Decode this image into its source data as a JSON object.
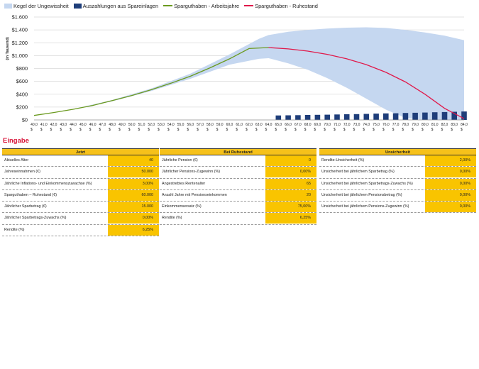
{
  "legend": [
    {
      "label": "Kegel der Ungewissheit",
      "kind": "box",
      "color": "#c5d7f0"
    },
    {
      "label": "Auszahlungen aus Spareinlagen",
      "kind": "box",
      "color": "#1f3e7a"
    },
    {
      "label": "Sparguthaben - Arbeitsjahre",
      "kind": "line",
      "color": "#6b9a1f"
    },
    {
      "label": "Sparguthaben - Ruhestand",
      "kind": "line",
      "color": "#e0194a"
    }
  ],
  "chart_data": {
    "type": "line",
    "ylabel": "(in Tausend)",
    "ylim": [
      0,
      1600
    ],
    "yticks": [
      0,
      200,
      400,
      600,
      800,
      1000,
      1200,
      1400,
      1600
    ],
    "ytick_labels": [
      "$0",
      "$200",
      "$400",
      "$600",
      "$800",
      "$1.000",
      "$1.200",
      "$1.400",
      "$1.600"
    ],
    "x": [
      40,
      41,
      42,
      43,
      44,
      45,
      46,
      47,
      48,
      49,
      50,
      51,
      52,
      53,
      54,
      55,
      56,
      57,
      58,
      59,
      60,
      61,
      62,
      63,
      64,
      65,
      66,
      67,
      68,
      69,
      70,
      71,
      72,
      73,
      74,
      75,
      76,
      77,
      78,
      79,
      80,
      81,
      82,
      83,
      84
    ],
    "xtick_labels": [
      "40,0 $",
      "41,0 $",
      "42,0 $",
      "43,0 $",
      "44,0 $",
      "45,0 $",
      "46,0 $",
      "47,0 $",
      "48,0 $",
      "49,0 $",
      "50,0 $",
      "51,0 $",
      "52,0 $",
      "53,0 $",
      "54,0 $",
      "55,0 $",
      "56,0 $",
      "57,0 $",
      "58,0 $",
      "59,0 $",
      "60,0 $",
      "61,0 $",
      "62,0 $",
      "63,0 $",
      "64,0 $",
      "65,0 $",
      "66,0 $",
      "67,0 $",
      "68,0 $",
      "69,0 $",
      "70,0 $",
      "71,0 $",
      "72,0 $",
      "73,0 $",
      "74,0 $",
      "75,0 $",
      "76,0 $",
      "77,0 $",
      "78,0 $",
      "79,0 $",
      "80,0 $",
      "81,0 $",
      "82,0 $",
      "83,0 $",
      "84,0 $"
    ],
    "grid": true,
    "legend_position": "top",
    "series": [
      {
        "name": "Sparguthaben - Arbeitsjahre",
        "type": "line",
        "color": "#6b9a1f",
        "x": [
          40,
          42,
          44,
          46,
          48,
          50,
          52,
          54,
          56,
          58,
          60,
          62,
          64
        ],
        "values": [
          70,
          115,
          165,
          225,
          300,
          380,
          470,
          570,
          680,
          810,
          950,
          1110,
          1125
        ]
      },
      {
        "name": "Sparguthaben - Ruhestand",
        "type": "line",
        "color": "#e0194a",
        "x": [
          64,
          66,
          68,
          70,
          72,
          74,
          76,
          78,
          80,
          82,
          84
        ],
        "values": [
          1125,
          1105,
          1070,
          1020,
          950,
          860,
          740,
          590,
          400,
          180,
          20
        ]
      },
      {
        "name": "Auszahlungen aus Spareinlagen",
        "type": "bar",
        "color": "#1f3e7a",
        "x": [
          65,
          66,
          67,
          68,
          69,
          70,
          71,
          72,
          73,
          74,
          75,
          76,
          77,
          78,
          79,
          80,
          81,
          82,
          83,
          84
        ],
        "values": [
          70,
          72,
          74,
          77,
          80,
          82,
          85,
          88,
          91,
          94,
          98,
          101,
          104,
          108,
          111,
          115,
          119,
          123,
          127,
          131
        ]
      },
      {
        "name": "Kegel der Ungewissheit",
        "type": "band",
        "color": "#c5d7f0",
        "x": [
          40,
          44,
          48,
          52,
          56,
          60,
          63,
          64,
          66,
          68,
          70,
          72,
          74,
          76,
          78,
          80,
          82,
          84
        ],
        "upper": [
          70,
          170,
          310,
          490,
          720,
          1020,
          1260,
          1320,
          1370,
          1400,
          1420,
          1435,
          1440,
          1430,
          1400,
          1360,
          1310,
          1240
        ],
        "lower": [
          70,
          160,
          290,
          450,
          640,
          860,
          950,
          960,
          880,
          780,
          650,
          500,
          330,
          160,
          30,
          0,
          0,
          0
        ]
      }
    ]
  },
  "section_title": "Eingabe",
  "tables": [
    {
      "header": "Jetzt",
      "rows": [
        {
          "label": "Aktuelles Alter",
          "value": "40"
        },
        {
          "label": "Jahreseinnahmen (€)",
          "value": "50.000"
        },
        {
          "label": "Jährliche Inflations- und Einkommenszuwachse (%)",
          "value": "3,00%"
        },
        {
          "label": "Sparguthaben – Ruhestand (€)",
          "value": "60.000"
        },
        {
          "label": "Jährlicher Sparbetrag (€)",
          "value": "15.000"
        },
        {
          "label": "Jährlicher Sparbetrags-Zuwachs (%)",
          "value": "0,00%"
        },
        {
          "label": "Rendite (%)",
          "value": "6,25%"
        }
      ]
    },
    {
      "header": "Bei Ruhestand",
      "rows": [
        {
          "label": "Jährliche Pension (€)",
          "value": "0"
        },
        {
          "label": "Jährlicher Pensions-Zugewinn (%)",
          "value": "0,00%"
        },
        {
          "label": "Angestrebtes Rentenalter",
          "value": "65"
        },
        {
          "label": "Anzahl Jahre mit Pensionseinkommen",
          "value": "20"
        },
        {
          "label": "Einkommensersatz (%)",
          "value": "75,00%"
        },
        {
          "label": "Rendite (%)",
          "value": "6,25%"
        }
      ]
    },
    {
      "header": "Unsicherheit",
      "rows": [
        {
          "label": "Rendite-Unsicherheit (%)",
          "value": "2,00%"
        },
        {
          "label": "Unsicherheit bei jährlichem Sparbetrag (%)",
          "value": "0,00%"
        },
        {
          "label": "Unsicherheit bei jährlichem Sparbetrags-Zuwachs (%)",
          "value": "0,00%"
        },
        {
          "label": "Unsicherheit bei jährlichem Pensionsbetrag (%)",
          "value": "0,00%"
        },
        {
          "label": "Unsicherheit bei jährlichem Pensions-Zugewinn (%)",
          "value": "0,00%"
        }
      ]
    }
  ]
}
